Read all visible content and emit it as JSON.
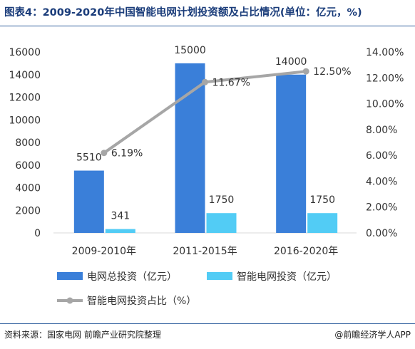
{
  "title": "图表4：2009-2020年中国智能电网计划投资额及占比情况(单位：亿元，%)",
  "source": "资料来源：国家电网 前瞻产业研究院整理",
  "brand": "@前瞻经济学人APP",
  "colors": {
    "total": "#3a7fd9",
    "smart": "#52ccf5",
    "share": "#a6a6a6",
    "title": "#1a3c7a"
  },
  "chart_data": {
    "type": "bar",
    "categories": [
      "2009-2010年",
      "2011-2015年",
      "2016-2020年"
    ],
    "series": [
      {
        "name": "电网总投资（亿元）",
        "type": "bar",
        "axis": "left",
        "values": [
          5510,
          15000,
          14000
        ]
      },
      {
        "name": "智能电网投资（亿元）",
        "type": "bar",
        "axis": "left",
        "values": [
          341,
          1750,
          1750
        ]
      },
      {
        "name": "智能电网投资占比（%）",
        "type": "line",
        "axis": "right",
        "values": [
          6.19,
          11.67,
          12.5
        ]
      }
    ],
    "bar_labels": [
      [
        "5510",
        "15000",
        "14000"
      ],
      [
        "341",
        "1750",
        "1750"
      ]
    ],
    "line_labels": [
      "6.19%",
      "11.67%",
      "12.50%"
    ],
    "left_ticks": [
      "0",
      "2000",
      "4000",
      "6000",
      "8000",
      "10000",
      "12000",
      "14000",
      "16000"
    ],
    "right_ticks": [
      "0.00%",
      "2.00%",
      "4.00%",
      "6.00%",
      "8.00%",
      "10.00%",
      "12.00%",
      "14.00%"
    ],
    "ylim_left": [
      0,
      16000
    ],
    "ylim_right": [
      0,
      14
    ],
    "grid": false,
    "legend_position": "bottom"
  }
}
